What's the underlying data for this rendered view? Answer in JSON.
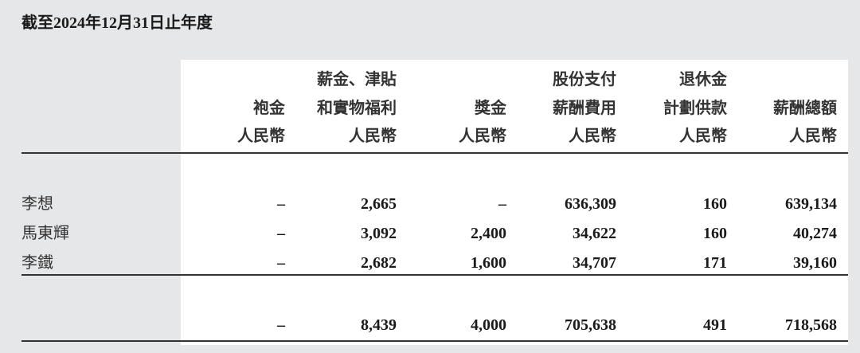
{
  "title": "截至2024年12月31日止年度",
  "columns": [
    {
      "lines": [
        "",
        "袍金",
        "人民幣"
      ]
    },
    {
      "lines": [
        "薪金、津貼",
        "和實物福利",
        "人民幣"
      ]
    },
    {
      "lines": [
        "",
        "獎金",
        "人民幣"
      ]
    },
    {
      "lines": [
        "股份支付",
        "薪酬費用",
        "人民幣"
      ]
    },
    {
      "lines": [
        "退休金",
        "計劃供款",
        "人民幣"
      ]
    },
    {
      "lines": [
        "",
        "薪酬總額",
        "人民幣"
      ]
    }
  ],
  "rows": [
    {
      "name": "李想",
      "values": [
        "–",
        "2,665",
        "–",
        "636,309",
        "160",
        "639,134"
      ]
    },
    {
      "name": "馬東輝",
      "values": [
        "–",
        "3,092",
        "2,400",
        "34,622",
        "160",
        "40,274"
      ]
    },
    {
      "name": "李鐵",
      "values": [
        "–",
        "2,682",
        "1,600",
        "34,707",
        "171",
        "39,160"
      ]
    }
  ],
  "total": {
    "name": "",
    "values": [
      "–",
      "8,439",
      "4,000",
      "705,638",
      "491",
      "718,568"
    ]
  }
}
